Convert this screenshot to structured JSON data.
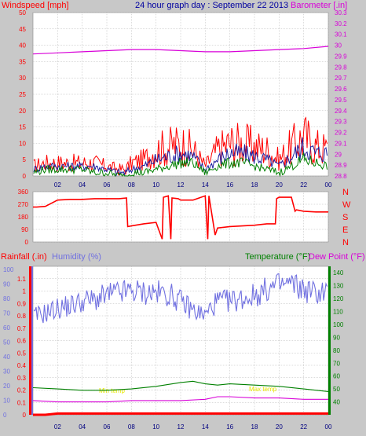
{
  "colors": {
    "background": "#c8c8c8",
    "plot_bg": "#ffffff",
    "grid": "#b8b8b8",
    "wind_gust": "#ff0000",
    "wind_avg": "#008000",
    "wind_mid": "#1f1f9f",
    "barometer": "#d800d8",
    "direction": "#ff0000",
    "humidity": "#7070e0",
    "temperature": "#008000",
    "dew_point": "#d800d8",
    "rainfall": "#ff0000",
    "annotation": "#e8e800",
    "title": "#0000a0"
  },
  "header": {
    "left_label": "Windspeed [mph]",
    "title": "24 hour graph day : September 22 2013",
    "right_label": "Barometer [.in]"
  },
  "bottom_header": {
    "rainfall_label": "Rainfall (.in)",
    "humidity_label": "Humidity (%)",
    "temperature_label": "Temperature (°F)",
    "dewpoint_label": "Dew Point (°F)"
  },
  "x_ticks": [
    "02",
    "04",
    "06",
    "08",
    "10",
    "12",
    "14",
    "16",
    "18",
    "20",
    "22",
    "00"
  ],
  "compass": [
    "N",
    "W",
    "S",
    "E",
    "N"
  ],
  "annotations": [
    "Min temp",
    "Max temp"
  ],
  "chart_data": [
    {
      "type": "line",
      "title": "24 hour graph day : September 22 2013",
      "xlabel": "",
      "ylabel": "Windspeed [mph]",
      "ylim": [
        0,
        50
      ],
      "y_ticks": [
        0,
        5,
        10,
        15,
        20,
        25,
        30,
        35,
        40,
        45,
        50
      ],
      "right_ylabel": "Barometer [.in]",
      "right_ylim": [
        28.8,
        30.3
      ],
      "right_y_ticks": [
        "28.8",
        "28.9",
        "29",
        "29.1",
        "29.2",
        "29.3",
        "29.4",
        "29.5",
        "29.6",
        "29.7",
        "29.8",
        "29.9",
        "30",
        "30.1",
        "30.2",
        "30.3"
      ],
      "x_range_hours": [
        0,
        24
      ],
      "grid": true,
      "series": [
        {
          "name": "Windspeed",
          "axis": "left",
          "role": "gust",
          "x": [
            0,
            1,
            2,
            3,
            4,
            5,
            6,
            7,
            7.5,
            8,
            9,
            10,
            11,
            12,
            13,
            14,
            15,
            16,
            17,
            18,
            19,
            20,
            21,
            22,
            23,
            24
          ],
          "values": [
            3,
            4,
            4,
            4,
            4,
            4,
            3,
            2,
            2,
            4,
            5,
            8,
            9,
            10,
            8,
            3,
            8,
            10,
            10,
            9,
            8,
            5,
            9,
            12,
            9,
            8
          ]
        },
        {
          "name": "Windspeed avg",
          "axis": "left",
          "role": "mid",
          "x": [
            0,
            1,
            2,
            3,
            4,
            5,
            6,
            7,
            7.5,
            8,
            9,
            10,
            11,
            12,
            13,
            14,
            15,
            16,
            17,
            18,
            19,
            20,
            21,
            22,
            23,
            24
          ],
          "values": [
            2,
            3,
            3,
            3,
            3,
            3,
            2,
            1,
            1,
            2,
            3,
            5,
            6,
            7,
            6,
            2,
            5,
            7,
            7,
            6,
            5,
            3,
            6,
            9,
            7,
            7
          ]
        },
        {
          "name": "Windspeed min",
          "axis": "left",
          "role": "avg",
          "x": [
            0,
            1,
            2,
            3,
            4,
            5,
            6,
            7,
            7.5,
            8,
            9,
            10,
            11,
            12,
            13,
            14,
            15,
            16,
            17,
            18,
            19,
            20,
            21,
            22,
            23,
            24
          ],
          "values": [
            1,
            2,
            2,
            2,
            2,
            1,
            1,
            0,
            0,
            1,
            1,
            2,
            3,
            4,
            4,
            1,
            3,
            4,
            4,
            3,
            2,
            1,
            3,
            5,
            4,
            3
          ]
        },
        {
          "name": "Barometer",
          "axis": "right",
          "x": [
            0,
            2,
            4,
            6,
            8,
            10,
            12,
            14,
            16,
            18,
            20,
            22,
            24
          ],
          "values": [
            29.92,
            29.93,
            29.94,
            29.95,
            29.96,
            29.96,
            29.95,
            29.94,
            29.94,
            29.95,
            29.96,
            29.97,
            29.99
          ]
        }
      ]
    },
    {
      "type": "line",
      "title": "",
      "ylabel": "",
      "ylim": [
        0,
        360
      ],
      "y_ticks": [
        0,
        90,
        180,
        270,
        360
      ],
      "grid": true,
      "series": [
        {
          "name": "Wind direction",
          "x": [
            0,
            0.3,
            1,
            2,
            3,
            4,
            5,
            6,
            7,
            7.6,
            7.7,
            8,
            9,
            10,
            10.5,
            10.6,
            11,
            11.2,
            11.3,
            11.8,
            12,
            13,
            14,
            14.2,
            14.3,
            14.8,
            15,
            16,
            17,
            18,
            19,
            19.7,
            19.8,
            20,
            21,
            21.3,
            21.4,
            22,
            23,
            24
          ],
          "values": [
            250,
            250,
            255,
            300,
            305,
            305,
            310,
            310,
            310,
            315,
            110,
            115,
            130,
            140,
            20,
            320,
            330,
            20,
            315,
            310,
            300,
            300,
            330,
            20,
            330,
            50,
            100,
            110,
            115,
            120,
            130,
            130,
            310,
            320,
            320,
            220,
            230,
            220,
            215,
            215
          ]
        }
      ]
    },
    {
      "type": "line",
      "title": "",
      "xlabel": "",
      "ylabel": "Rainfall (.in)",
      "ylim": [
        0,
        1.2
      ],
      "y_ticks": [
        "0",
        "0.1",
        "0.2",
        "0.3",
        "0.4",
        "0.5",
        "0.6",
        "0.7",
        "0.8",
        "0.9",
        "1",
        "1.1"
      ],
      "humidity_ticks": [
        0,
        10,
        20,
        30,
        40,
        50,
        60,
        70,
        80,
        90,
        100
      ],
      "humidity_ylim": [
        0,
        100
      ],
      "right_ylabel": "Temperature (°F)",
      "right_ylim": [
        30,
        145
      ],
      "right_y_ticks": [
        40,
        50,
        60,
        70,
        80,
        90,
        100,
        110,
        120,
        130,
        140
      ],
      "grid": true,
      "series": [
        {
          "name": "Rainfall",
          "axis": "left",
          "x": [
            0,
            1,
            2,
            24
          ],
          "values": [
            0,
            0,
            0.01,
            0.01
          ]
        },
        {
          "name": "Humidity",
          "axis": "humidity",
          "x": [
            0,
            1,
            2,
            3,
            4,
            5,
            6,
            7,
            8,
            9,
            10,
            11,
            12,
            13,
            14,
            14.5,
            15,
            16,
            17,
            18,
            19,
            20,
            21,
            22,
            23,
            24
          ],
          "values": [
            67,
            70,
            73,
            75,
            78,
            79,
            82,
            84,
            85,
            84,
            84,
            83,
            78,
            72,
            68,
            74,
            78,
            78,
            80,
            82,
            86,
            89,
            90,
            86,
            84,
            85
          ]
        },
        {
          "name": "Temperature",
          "axis": "right",
          "x": [
            0,
            2,
            4,
            6,
            8,
            10,
            12,
            13,
            14,
            15,
            16,
            18,
            20,
            22,
            24
          ],
          "values": [
            51,
            50,
            49,
            49,
            50,
            52,
            55,
            56,
            54,
            53,
            54,
            53,
            52,
            50,
            48
          ]
        },
        {
          "name": "Dew Point",
          "axis": "right",
          "x": [
            0,
            2,
            4,
            6,
            8,
            10,
            12,
            14,
            15,
            16,
            18,
            20,
            22,
            24
          ],
          "values": [
            41,
            40,
            40,
            40,
            41,
            41,
            41,
            42,
            44,
            44,
            43,
            43,
            42,
            42
          ]
        }
      ]
    }
  ]
}
